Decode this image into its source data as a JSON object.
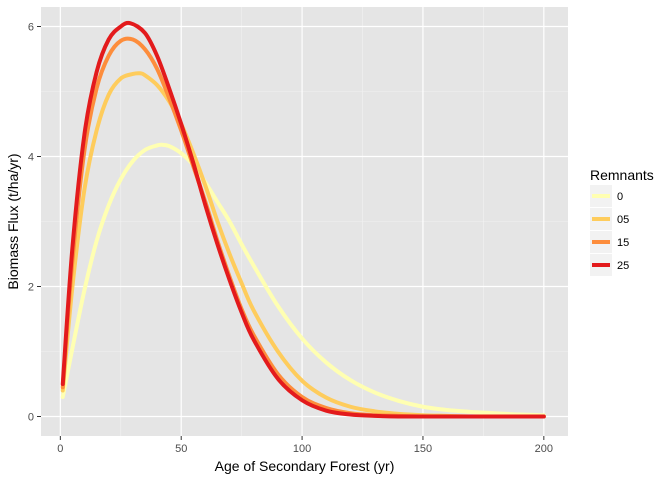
{
  "chart_data": {
    "type": "line",
    "title": "",
    "xlabel": "Age of Secondary Forest (yr)",
    "ylabel": "Biomass Flux (t/ha/yr)",
    "xlim": [
      -8,
      210
    ],
    "ylim": [
      -0.3,
      6.3
    ],
    "x_ticks": [
      0,
      50,
      100,
      150,
      200
    ],
    "y_ticks": [
      0,
      2,
      4,
      6
    ],
    "grid": true,
    "legend": {
      "title": "Remnants",
      "position": "right"
    },
    "series": [
      {
        "name": "0",
        "color": "#FFFFB2",
        "x": [
          1,
          5,
          10,
          15,
          20,
          25,
          30,
          35,
          40,
          42,
          45,
          50,
          55,
          60,
          65,
          70,
          75,
          80,
          90,
          100,
          110,
          120,
          130,
          140,
          150,
          160,
          170,
          180,
          190,
          200
        ],
        "y": [
          0.3,
          1.05,
          1.95,
          2.7,
          3.25,
          3.65,
          3.93,
          4.1,
          4.17,
          4.18,
          4.16,
          4.05,
          3.87,
          3.6,
          3.3,
          3.0,
          2.65,
          2.32,
          1.7,
          1.2,
          0.83,
          0.56,
          0.37,
          0.24,
          0.15,
          0.1,
          0.07,
          0.05,
          0.03,
          0.02
        ]
      },
      {
        "name": "05",
        "color": "#FECC5C",
        "x": [
          1,
          5,
          10,
          15,
          20,
          25,
          30,
          33,
          35,
          40,
          45,
          50,
          55,
          60,
          65,
          70,
          75,
          80,
          90,
          100,
          110,
          120,
          130,
          140,
          150,
          160,
          170,
          180,
          190,
          200
        ],
        "y": [
          0.4,
          2.0,
          3.5,
          4.4,
          4.95,
          5.2,
          5.27,
          5.28,
          5.25,
          5.1,
          4.85,
          4.5,
          4.05,
          3.55,
          3.0,
          2.5,
          2.05,
          1.63,
          1.0,
          0.55,
          0.29,
          0.15,
          0.08,
          0.04,
          0.02,
          0.01,
          0.0,
          0.0,
          0.0,
          0.0
        ]
      },
      {
        "name": "15",
        "color": "#FD8D3C",
        "x": [
          1,
          5,
          10,
          15,
          20,
          25,
          30,
          35,
          40,
          45,
          50,
          55,
          60,
          65,
          70,
          75,
          80,
          90,
          100,
          110,
          120,
          130,
          140,
          150,
          160,
          170,
          180,
          190,
          200
        ],
        "y": [
          0.45,
          2.4,
          4.1,
          5.05,
          5.55,
          5.78,
          5.8,
          5.65,
          5.35,
          4.9,
          4.4,
          3.85,
          3.3,
          2.7,
          2.15,
          1.65,
          1.25,
          0.65,
          0.3,
          0.13,
          0.05,
          0.02,
          0.01,
          0.0,
          0.0,
          0.0,
          0.0,
          0.0,
          0.0
        ]
      },
      {
        "name": "25",
        "color": "#E31A1C",
        "x": [
          1,
          5,
          10,
          15,
          20,
          25,
          29,
          35,
          40,
          45,
          50,
          55,
          60,
          65,
          70,
          75,
          80,
          90,
          100,
          110,
          120,
          130,
          140,
          150,
          160,
          170,
          180,
          190,
          200
        ],
        "y": [
          0.5,
          2.6,
          4.35,
          5.3,
          5.8,
          6.0,
          6.05,
          5.9,
          5.55,
          5.05,
          4.5,
          3.9,
          3.25,
          2.65,
          2.1,
          1.6,
          1.18,
          0.58,
          0.25,
          0.09,
          0.03,
          0.01,
          0.0,
          0.0,
          0.0,
          0.0,
          0.0,
          0.0,
          0.0
        ]
      }
    ]
  }
}
